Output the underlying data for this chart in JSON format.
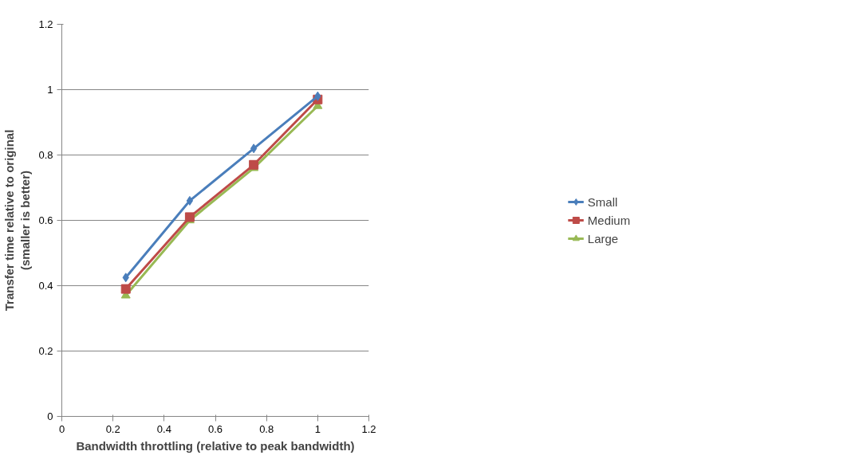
{
  "chart_data": {
    "type": "line",
    "xlabel": "Bandwidth throttling (relative to peak bandwidth)",
    "ylabel": "Transfer time relative to original\n(smaller is better)",
    "x": [
      0.25,
      0.5,
      0.75,
      1.0
    ],
    "series": [
      {
        "name": "Small",
        "color": "#4a7ebb",
        "marker": "diamond",
        "values": [
          0.425,
          0.66,
          0.82,
          0.98
        ]
      },
      {
        "name": "Medium",
        "color": "#be4b48",
        "marker": "square",
        "values": [
          0.39,
          0.61,
          0.77,
          0.97
        ]
      },
      {
        "name": "Large",
        "color": "#98b954",
        "marker": "triangle",
        "values": [
          0.37,
          0.6,
          0.76,
          0.95
        ]
      }
    ],
    "xlim": [
      0,
      1.2
    ],
    "xticks": [
      0,
      0.2,
      0.4,
      0.6,
      0.8,
      1,
      1.2
    ],
    "ylim": [
      0,
      1.2
    ],
    "yticks": [
      0,
      0.2,
      0.4,
      0.6,
      0.8,
      1,
      1.2
    ],
    "grid": "y",
    "legend": "right",
    "line_style": "solid"
  }
}
